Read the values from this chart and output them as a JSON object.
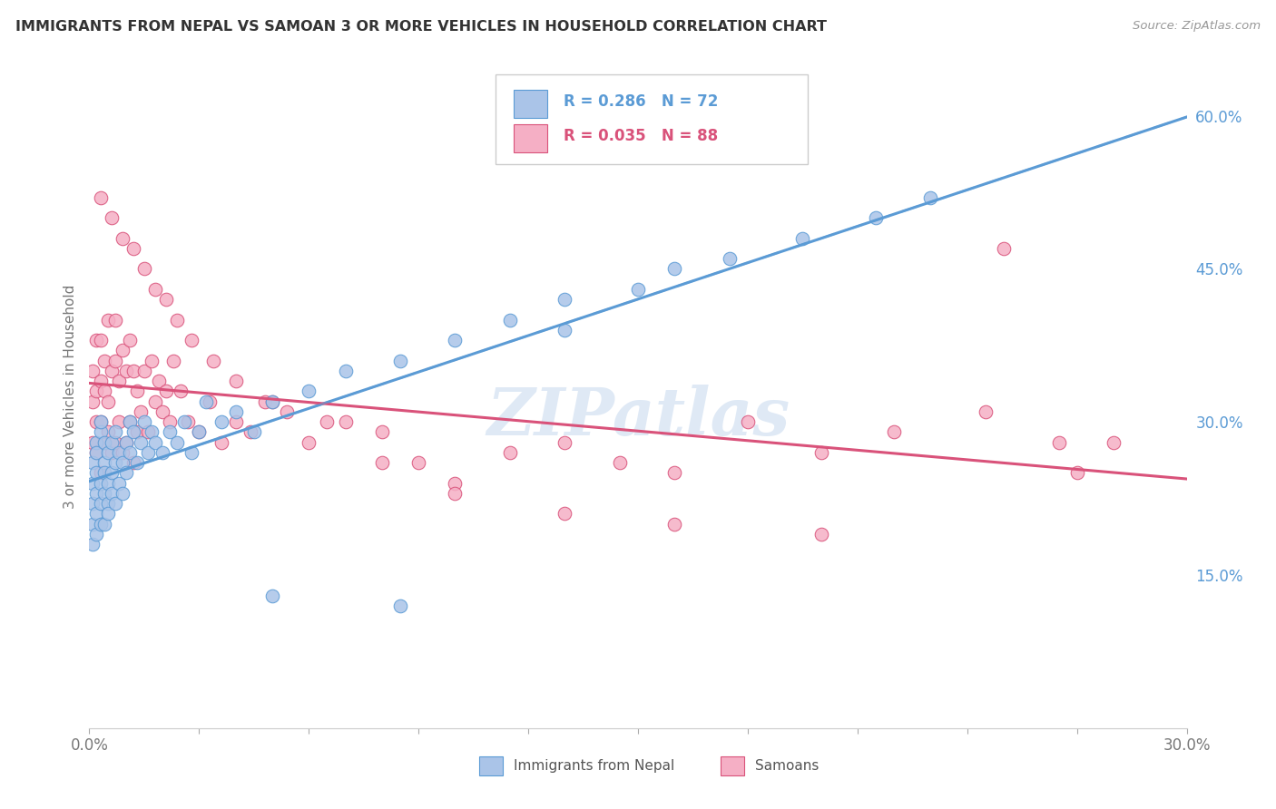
{
  "title": "IMMIGRANTS FROM NEPAL VS SAMOAN 3 OR MORE VEHICLES IN HOUSEHOLD CORRELATION CHART",
  "source": "Source: ZipAtlas.com",
  "ylabel": "3 or more Vehicles in Household",
  "xlim": [
    0.0,
    0.3
  ],
  "ylim": [
    0.0,
    0.65
  ],
  "xticks": [
    0.0,
    0.03,
    0.06,
    0.09,
    0.12,
    0.15,
    0.18,
    0.21,
    0.24,
    0.27,
    0.3
  ],
  "xticklabels": [
    "0.0%",
    "",
    "",
    "",
    "",
    "",
    "",
    "",
    "",
    "",
    "30.0%"
  ],
  "yticks_right": [
    0.15,
    0.3,
    0.45,
    0.6
  ],
  "ytick_right_labels": [
    "15.0%",
    "30.0%",
    "45.0%",
    "60.0%"
  ],
  "legend_labels": [
    "Immigrants from Nepal",
    "Samoans"
  ],
  "nepal_color": "#aac4e8",
  "samoan_color": "#f5afc5",
  "nepal_line_color": "#5b9bd5",
  "samoan_line_color": "#d9527a",
  "nepal_R": 0.286,
  "nepal_N": 72,
  "samoan_R": 0.035,
  "samoan_N": 88,
  "watermark": "ZIPatlas",
  "background_color": "#ffffff",
  "grid_color": "#d8d8d8",
  "nepal_x": [
    0.001,
    0.001,
    0.001,
    0.001,
    0.001,
    0.002,
    0.002,
    0.002,
    0.002,
    0.002,
    0.002,
    0.003,
    0.003,
    0.003,
    0.003,
    0.003,
    0.004,
    0.004,
    0.004,
    0.004,
    0.004,
    0.005,
    0.005,
    0.005,
    0.005,
    0.006,
    0.006,
    0.006,
    0.007,
    0.007,
    0.007,
    0.008,
    0.008,
    0.009,
    0.009,
    0.01,
    0.01,
    0.011,
    0.011,
    0.012,
    0.013,
    0.014,
    0.015,
    0.016,
    0.017,
    0.018,
    0.02,
    0.022,
    0.024,
    0.026,
    0.028,
    0.03,
    0.032,
    0.036,
    0.04,
    0.045,
    0.05,
    0.06,
    0.07,
    0.085,
    0.1,
    0.115,
    0.13,
    0.15,
    0.16,
    0.175,
    0.195,
    0.215,
    0.23,
    0.13,
    0.05,
    0.085
  ],
  "nepal_y": [
    0.22,
    0.24,
    0.2,
    0.26,
    0.18,
    0.28,
    0.23,
    0.25,
    0.21,
    0.19,
    0.27,
    0.2,
    0.29,
    0.24,
    0.22,
    0.3,
    0.23,
    0.26,
    0.2,
    0.28,
    0.25,
    0.22,
    0.27,
    0.24,
    0.21,
    0.28,
    0.25,
    0.23,
    0.26,
    0.22,
    0.29,
    0.24,
    0.27,
    0.23,
    0.26,
    0.25,
    0.28,
    0.3,
    0.27,
    0.29,
    0.26,
    0.28,
    0.3,
    0.27,
    0.29,
    0.28,
    0.27,
    0.29,
    0.28,
    0.3,
    0.27,
    0.29,
    0.32,
    0.3,
    0.31,
    0.29,
    0.32,
    0.33,
    0.35,
    0.36,
    0.38,
    0.4,
    0.42,
    0.43,
    0.45,
    0.46,
    0.48,
    0.5,
    0.52,
    0.39,
    0.13,
    0.12
  ],
  "samoan_x": [
    0.001,
    0.001,
    0.001,
    0.002,
    0.002,
    0.002,
    0.002,
    0.003,
    0.003,
    0.003,
    0.003,
    0.004,
    0.004,
    0.004,
    0.005,
    0.005,
    0.005,
    0.006,
    0.006,
    0.007,
    0.007,
    0.007,
    0.008,
    0.008,
    0.009,
    0.009,
    0.01,
    0.01,
    0.011,
    0.011,
    0.012,
    0.012,
    0.013,
    0.013,
    0.014,
    0.015,
    0.016,
    0.017,
    0.018,
    0.019,
    0.02,
    0.021,
    0.022,
    0.023,
    0.025,
    0.027,
    0.03,
    0.033,
    0.036,
    0.04,
    0.044,
    0.048,
    0.054,
    0.06,
    0.07,
    0.08,
    0.09,
    0.1,
    0.115,
    0.13,
    0.145,
    0.16,
    0.18,
    0.2,
    0.22,
    0.245,
    0.265,
    0.003,
    0.006,
    0.009,
    0.012,
    0.015,
    0.018,
    0.021,
    0.024,
    0.028,
    0.034,
    0.04,
    0.05,
    0.065,
    0.08,
    0.1,
    0.13,
    0.16,
    0.2,
    0.25,
    0.27,
    0.28
  ],
  "samoan_y": [
    0.28,
    0.32,
    0.35,
    0.27,
    0.3,
    0.33,
    0.38,
    0.25,
    0.3,
    0.34,
    0.38,
    0.28,
    0.33,
    0.36,
    0.29,
    0.32,
    0.4,
    0.27,
    0.35,
    0.28,
    0.36,
    0.4,
    0.3,
    0.34,
    0.27,
    0.37,
    0.28,
    0.35,
    0.3,
    0.38,
    0.26,
    0.35,
    0.29,
    0.33,
    0.31,
    0.35,
    0.29,
    0.36,
    0.32,
    0.34,
    0.31,
    0.33,
    0.3,
    0.36,
    0.33,
    0.3,
    0.29,
    0.32,
    0.28,
    0.3,
    0.29,
    0.32,
    0.31,
    0.28,
    0.3,
    0.29,
    0.26,
    0.24,
    0.27,
    0.28,
    0.26,
    0.25,
    0.3,
    0.27,
    0.29,
    0.31,
    0.28,
    0.52,
    0.5,
    0.48,
    0.47,
    0.45,
    0.43,
    0.42,
    0.4,
    0.38,
    0.36,
    0.34,
    0.32,
    0.3,
    0.26,
    0.23,
    0.21,
    0.2,
    0.19,
    0.47,
    0.25,
    0.28
  ]
}
